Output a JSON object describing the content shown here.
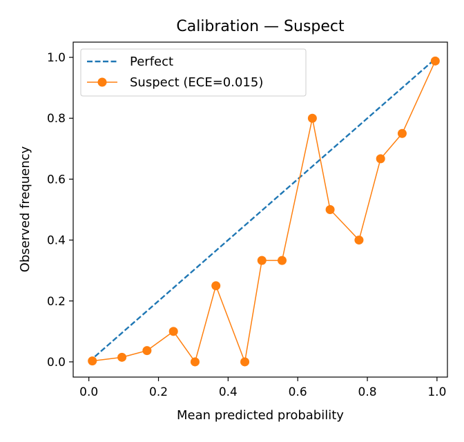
{
  "chart_data": {
    "type": "line",
    "title": "Calibration — Suspect",
    "xlabel": "Mean predicted probability",
    "ylabel": "Observed frequency",
    "xlim": [
      -0.045,
      1.03
    ],
    "ylim": [
      -0.05,
      1.05
    ],
    "xticks": [
      0.0,
      0.2,
      0.4,
      0.6,
      0.8,
      1.0
    ],
    "xtick_labels": [
      "0.0",
      "0.2",
      "0.4",
      "0.6",
      "0.8",
      "1.0"
    ],
    "yticks": [
      0.0,
      0.2,
      0.4,
      0.6,
      0.8,
      1.0
    ],
    "ytick_labels": [
      "0.0",
      "0.2",
      "0.4",
      "0.6",
      "0.8",
      "1.0"
    ],
    "grid": false,
    "legend_position": "upper-left",
    "series": [
      {
        "name": "Perfect",
        "style": "dashed",
        "color": "#1f77b4",
        "x": [
          0.0,
          1.0
        ],
        "y": [
          0.0,
          1.0
        ]
      },
      {
        "name": "Suspect  (ECE=0.015)",
        "style": "line-with-markers",
        "color": "#ff7f0e",
        "x": [
          0.01,
          0.095,
          0.167,
          0.243,
          0.305,
          0.365,
          0.448,
          0.497,
          0.555,
          0.642,
          0.693,
          0.776,
          0.838,
          0.9,
          0.995
        ],
        "y": [
          0.003,
          0.015,
          0.037,
          0.1,
          0.0,
          0.25,
          0.0,
          0.333,
          0.333,
          0.8,
          0.5,
          0.4,
          0.667,
          0.75,
          0.988
        ]
      }
    ]
  }
}
